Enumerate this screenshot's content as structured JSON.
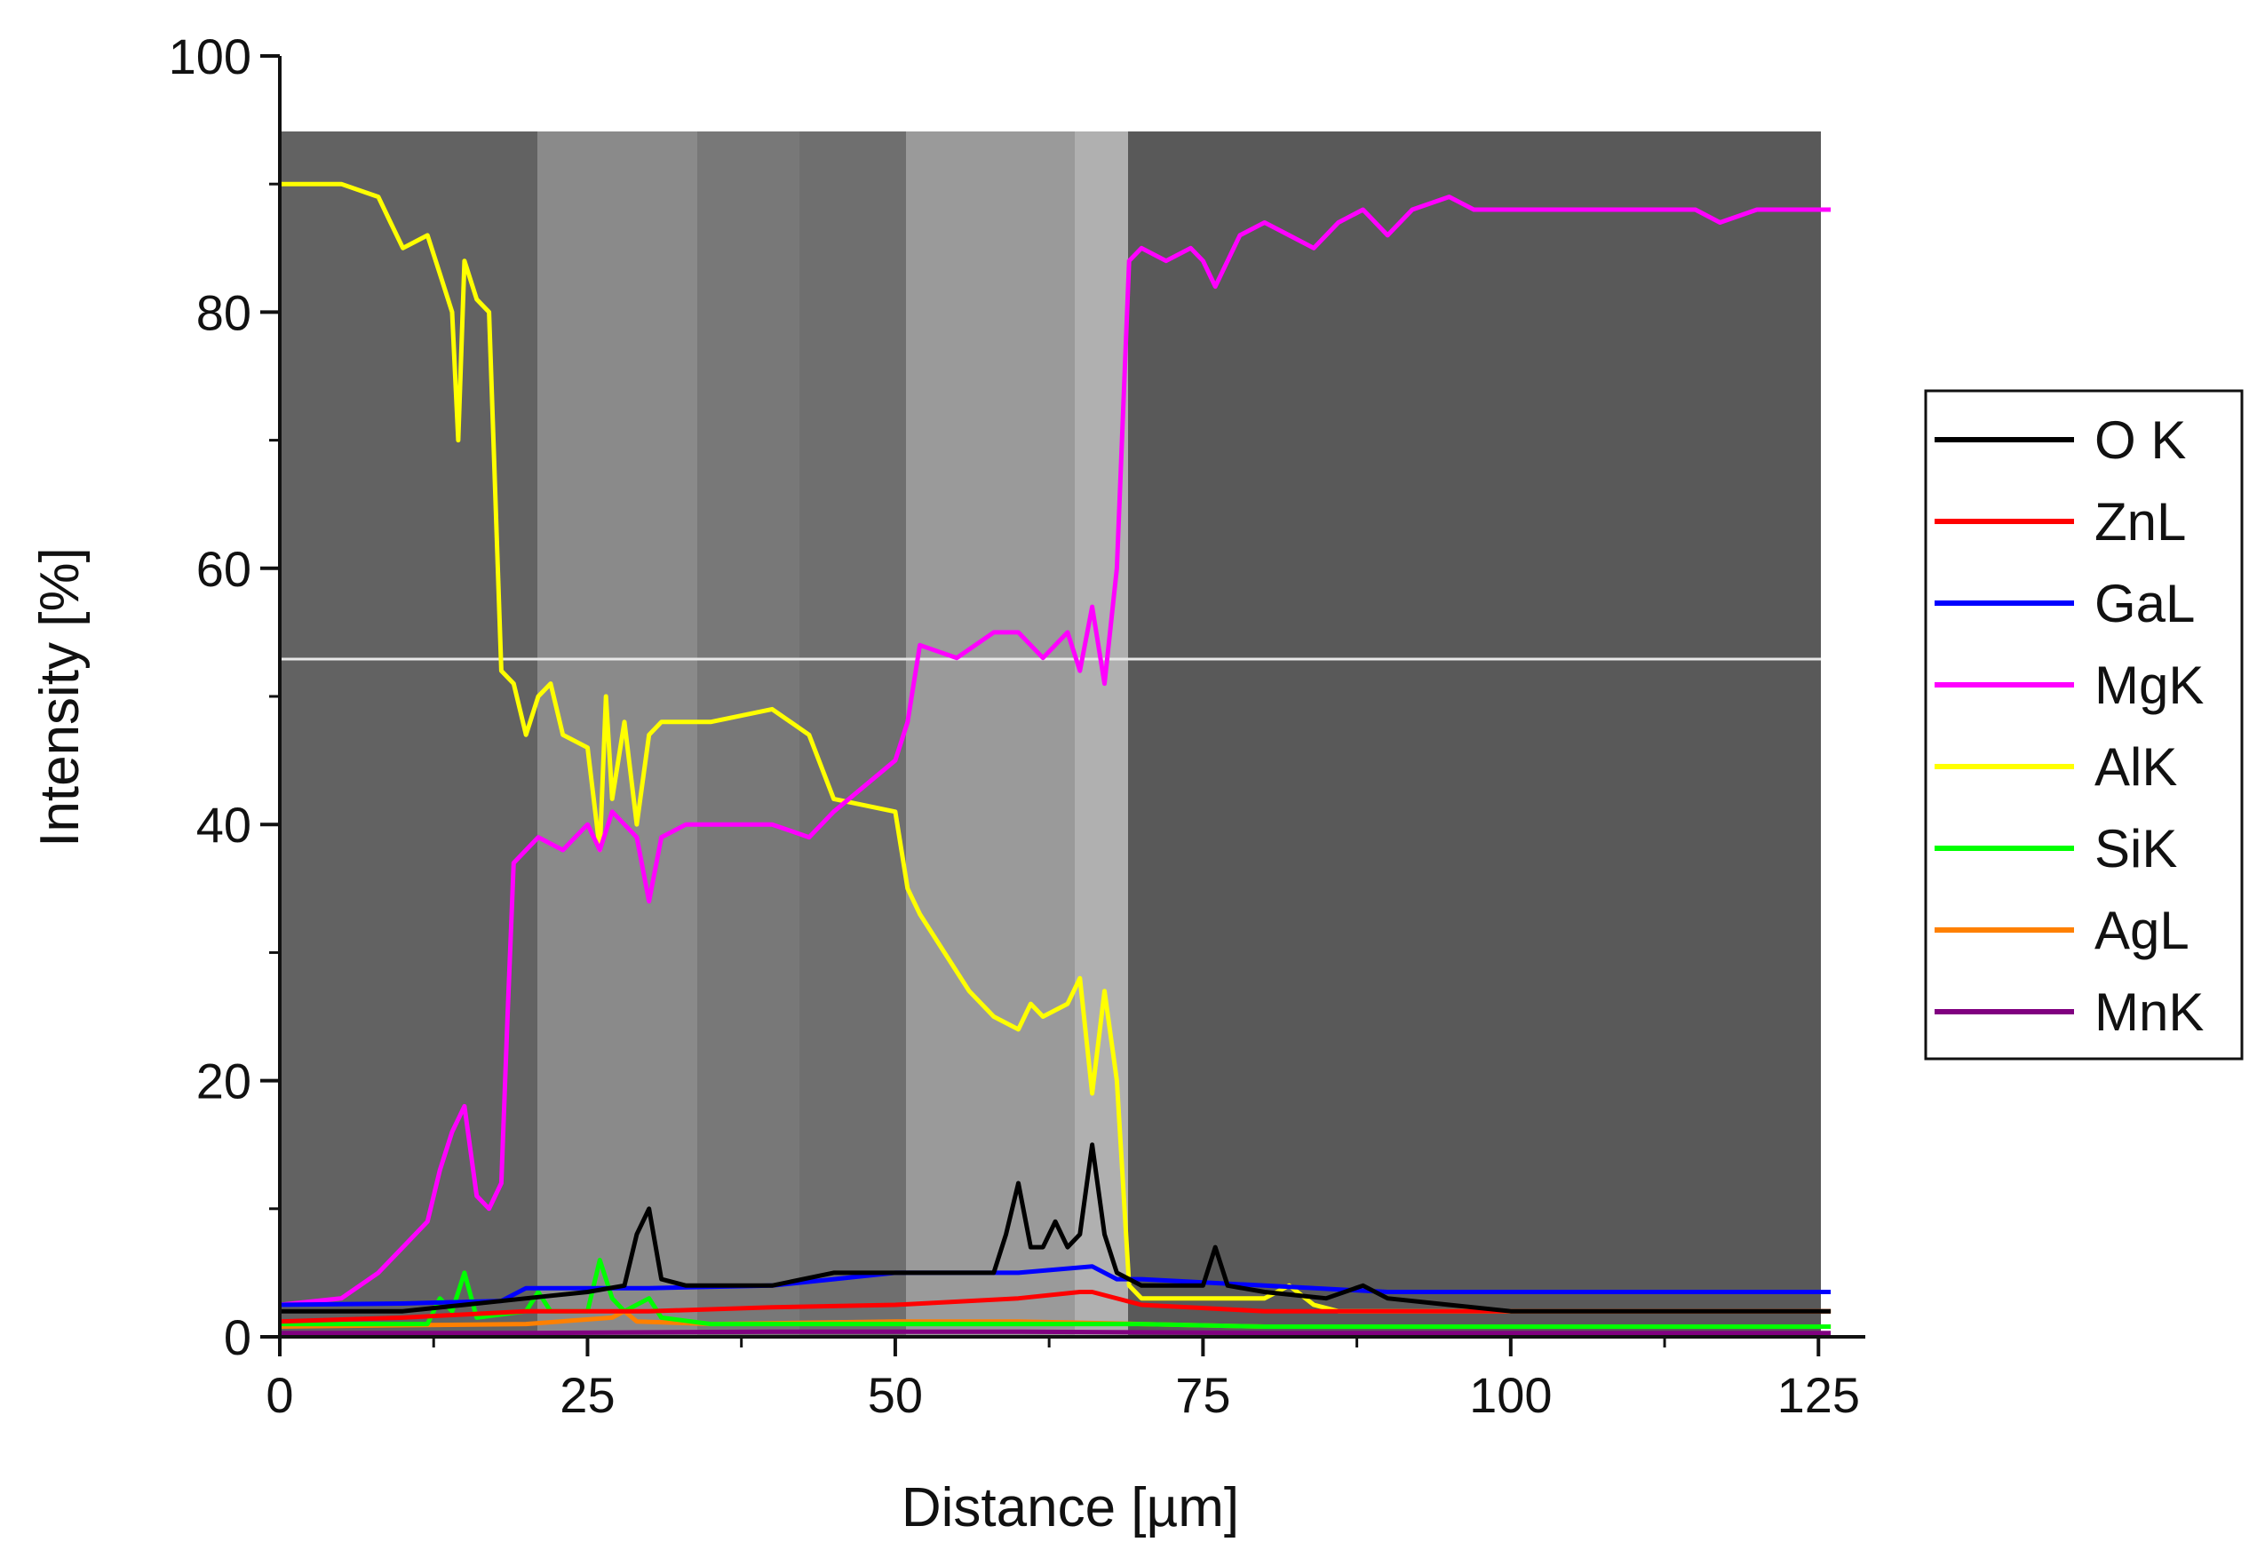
{
  "chart_data": {
    "type": "line",
    "xlabel": "Distance [µm]",
    "ylabel": "Intensity [%]",
    "xlim": [
      0,
      127
    ],
    "ylim": [
      0,
      100
    ],
    "xticks": [
      0,
      25,
      50,
      75,
      100,
      125
    ],
    "yticks": [
      0,
      20,
      40,
      60,
      80,
      100
    ],
    "grid": false,
    "legend_position": "right",
    "background": "SEM micrograph of a layered cross-section with a horizontal scan line",
    "series": [
      {
        "name": "O K",
        "color": "#000000",
        "x": [
          0,
          5,
          10,
          15,
          20,
          25,
          28,
          29,
          30,
          31,
          33,
          40,
          45,
          50,
          55,
          58,
          59,
          60,
          61,
          62,
          63,
          64,
          65,
          66,
          67,
          68,
          70,
          75,
          76,
          77,
          80,
          85,
          88,
          90,
          95,
          100,
          110,
          120,
          126
        ],
        "y": [
          2,
          2,
          2,
          2.5,
          3,
          3.5,
          4,
          8,
          10,
          4.5,
          4,
          4,
          5,
          5,
          5,
          5,
          8,
          12,
          7,
          7,
          9,
          7,
          8,
          15,
          8,
          5,
          4,
          4,
          7,
          4,
          3.5,
          3,
          4,
          3,
          2.5,
          2,
          2,
          2,
          2
        ]
      },
      {
        "name": "ZnL",
        "color": "#ff0000",
        "x": [
          0,
          10,
          20,
          30,
          40,
          50,
          60,
          65,
          66,
          70,
          80,
          90,
          100,
          110,
          120,
          126
        ],
        "y": [
          1.2,
          1.5,
          2,
          2,
          2.3,
          2.5,
          3,
          3.5,
          3.5,
          2.5,
          2,
          2,
          2,
          2,
          2,
          2
        ]
      },
      {
        "name": "GaL",
        "color": "#0000ff",
        "x": [
          0,
          10,
          18,
          20,
          30,
          40,
          45,
          50,
          60,
          66,
          68,
          70,
          80,
          90,
          100,
          110,
          120,
          126
        ],
        "y": [
          2.5,
          2.6,
          2.8,
          3.8,
          3.8,
          4,
          4.5,
          5,
          5,
          5.5,
          4.5,
          4.5,
          4,
          3.5,
          3.5,
          3.5,
          3.5,
          3.5
        ]
      },
      {
        "name": "MgK",
        "color": "#ff00ff",
        "x": [
          0,
          5,
          8,
          10,
          12,
          13,
          14,
          15,
          16,
          17,
          18,
          18.5,
          19,
          21,
          23,
          25,
          26,
          27,
          28,
          29,
          30,
          31,
          33,
          35,
          40,
          43,
          45,
          50,
          51,
          52,
          55,
          58,
          60,
          62,
          64,
          65,
          66,
          67,
          68,
          69,
          70,
          72,
          74,
          75,
          76,
          78,
          80,
          82,
          84,
          86,
          88,
          90,
          92,
          95,
          97,
          100,
          105,
          110,
          115,
          117,
          120,
          126
        ],
        "y": [
          2.5,
          3,
          5,
          7,
          9,
          13,
          16,
          18,
          11,
          10,
          12,
          25,
          37,
          39,
          38,
          40,
          38,
          41,
          40,
          39,
          34,
          39,
          40,
          40,
          40,
          39,
          41,
          45,
          48,
          54,
          53,
          55,
          55,
          53,
          55,
          52,
          57,
          51,
          60,
          84,
          85,
          84,
          85,
          84,
          82,
          86,
          87,
          86,
          85,
          87,
          88,
          86,
          88,
          89,
          88,
          88,
          88,
          88,
          88,
          87,
          88,
          88
        ]
      },
      {
        "name": "AlK",
        "color": "#ffff00",
        "x": [
          0,
          5,
          8,
          9,
          10,
          12,
          13,
          14,
          14.5,
          15,
          16,
          17,
          18,
          19,
          20,
          21,
          22,
          23,
          25,
          26,
          26.5,
          27,
          28,
          29,
          30,
          31,
          35,
          40,
          43,
          45,
          50,
          51,
          52,
          54,
          56,
          58,
          60,
          61,
          62,
          64,
          65,
          66,
          67,
          68,
          69,
          70,
          75,
          80,
          82,
          84,
          86,
          90,
          95,
          100,
          110,
          120,
          126
        ],
        "y": [
          90,
          90,
          89,
          87,
          85,
          86,
          83,
          80,
          70,
          84,
          81,
          80,
          52,
          51,
          47,
          50,
          51,
          47,
          46,
          38,
          50,
          42,
          48,
          40,
          47,
          48,
          48,
          49,
          47,
          42,
          41,
          35,
          33,
          30,
          27,
          25,
          24,
          26,
          25,
          26,
          28,
          19,
          27,
          20,
          4,
          3,
          3,
          3,
          4,
          2.5,
          2,
          2,
          2,
          2,
          2,
          2,
          2
        ]
      },
      {
        "name": "SiK",
        "color": "#00ff00",
        "x": [
          0,
          10,
          12,
          13,
          14,
          15,
          16,
          20,
          21,
          22,
          25,
          26,
          27,
          28,
          30,
          31,
          35,
          45,
          60,
          70,
          80,
          100,
          126
        ],
        "y": [
          1,
          1,
          1,
          3,
          2,
          5,
          1.5,
          2,
          3.5,
          2,
          2,
          6,
          3,
          2,
          3,
          1.5,
          1,
          1,
          1,
          1,
          0.8,
          0.8,
          0.8
        ]
      },
      {
        "name": "AgL",
        "color": "#ff8000",
        "x": [
          0,
          10,
          20,
          27,
          28,
          29,
          35,
          50,
          60,
          70,
          80,
          100,
          126
        ],
        "y": [
          0.8,
          0.9,
          1,
          1.5,
          2,
          1.2,
          1,
          1.2,
          1.2,
          1,
          0.8,
          0.8,
          0.8
        ]
      },
      {
        "name": "MnK",
        "color": "#800080",
        "x": [
          0,
          20,
          40,
          60,
          80,
          100,
          126
        ],
        "y": [
          0.3,
          0.3,
          0.4,
          0.4,
          0.3,
          0.3,
          0.3
        ]
      }
    ]
  }
}
